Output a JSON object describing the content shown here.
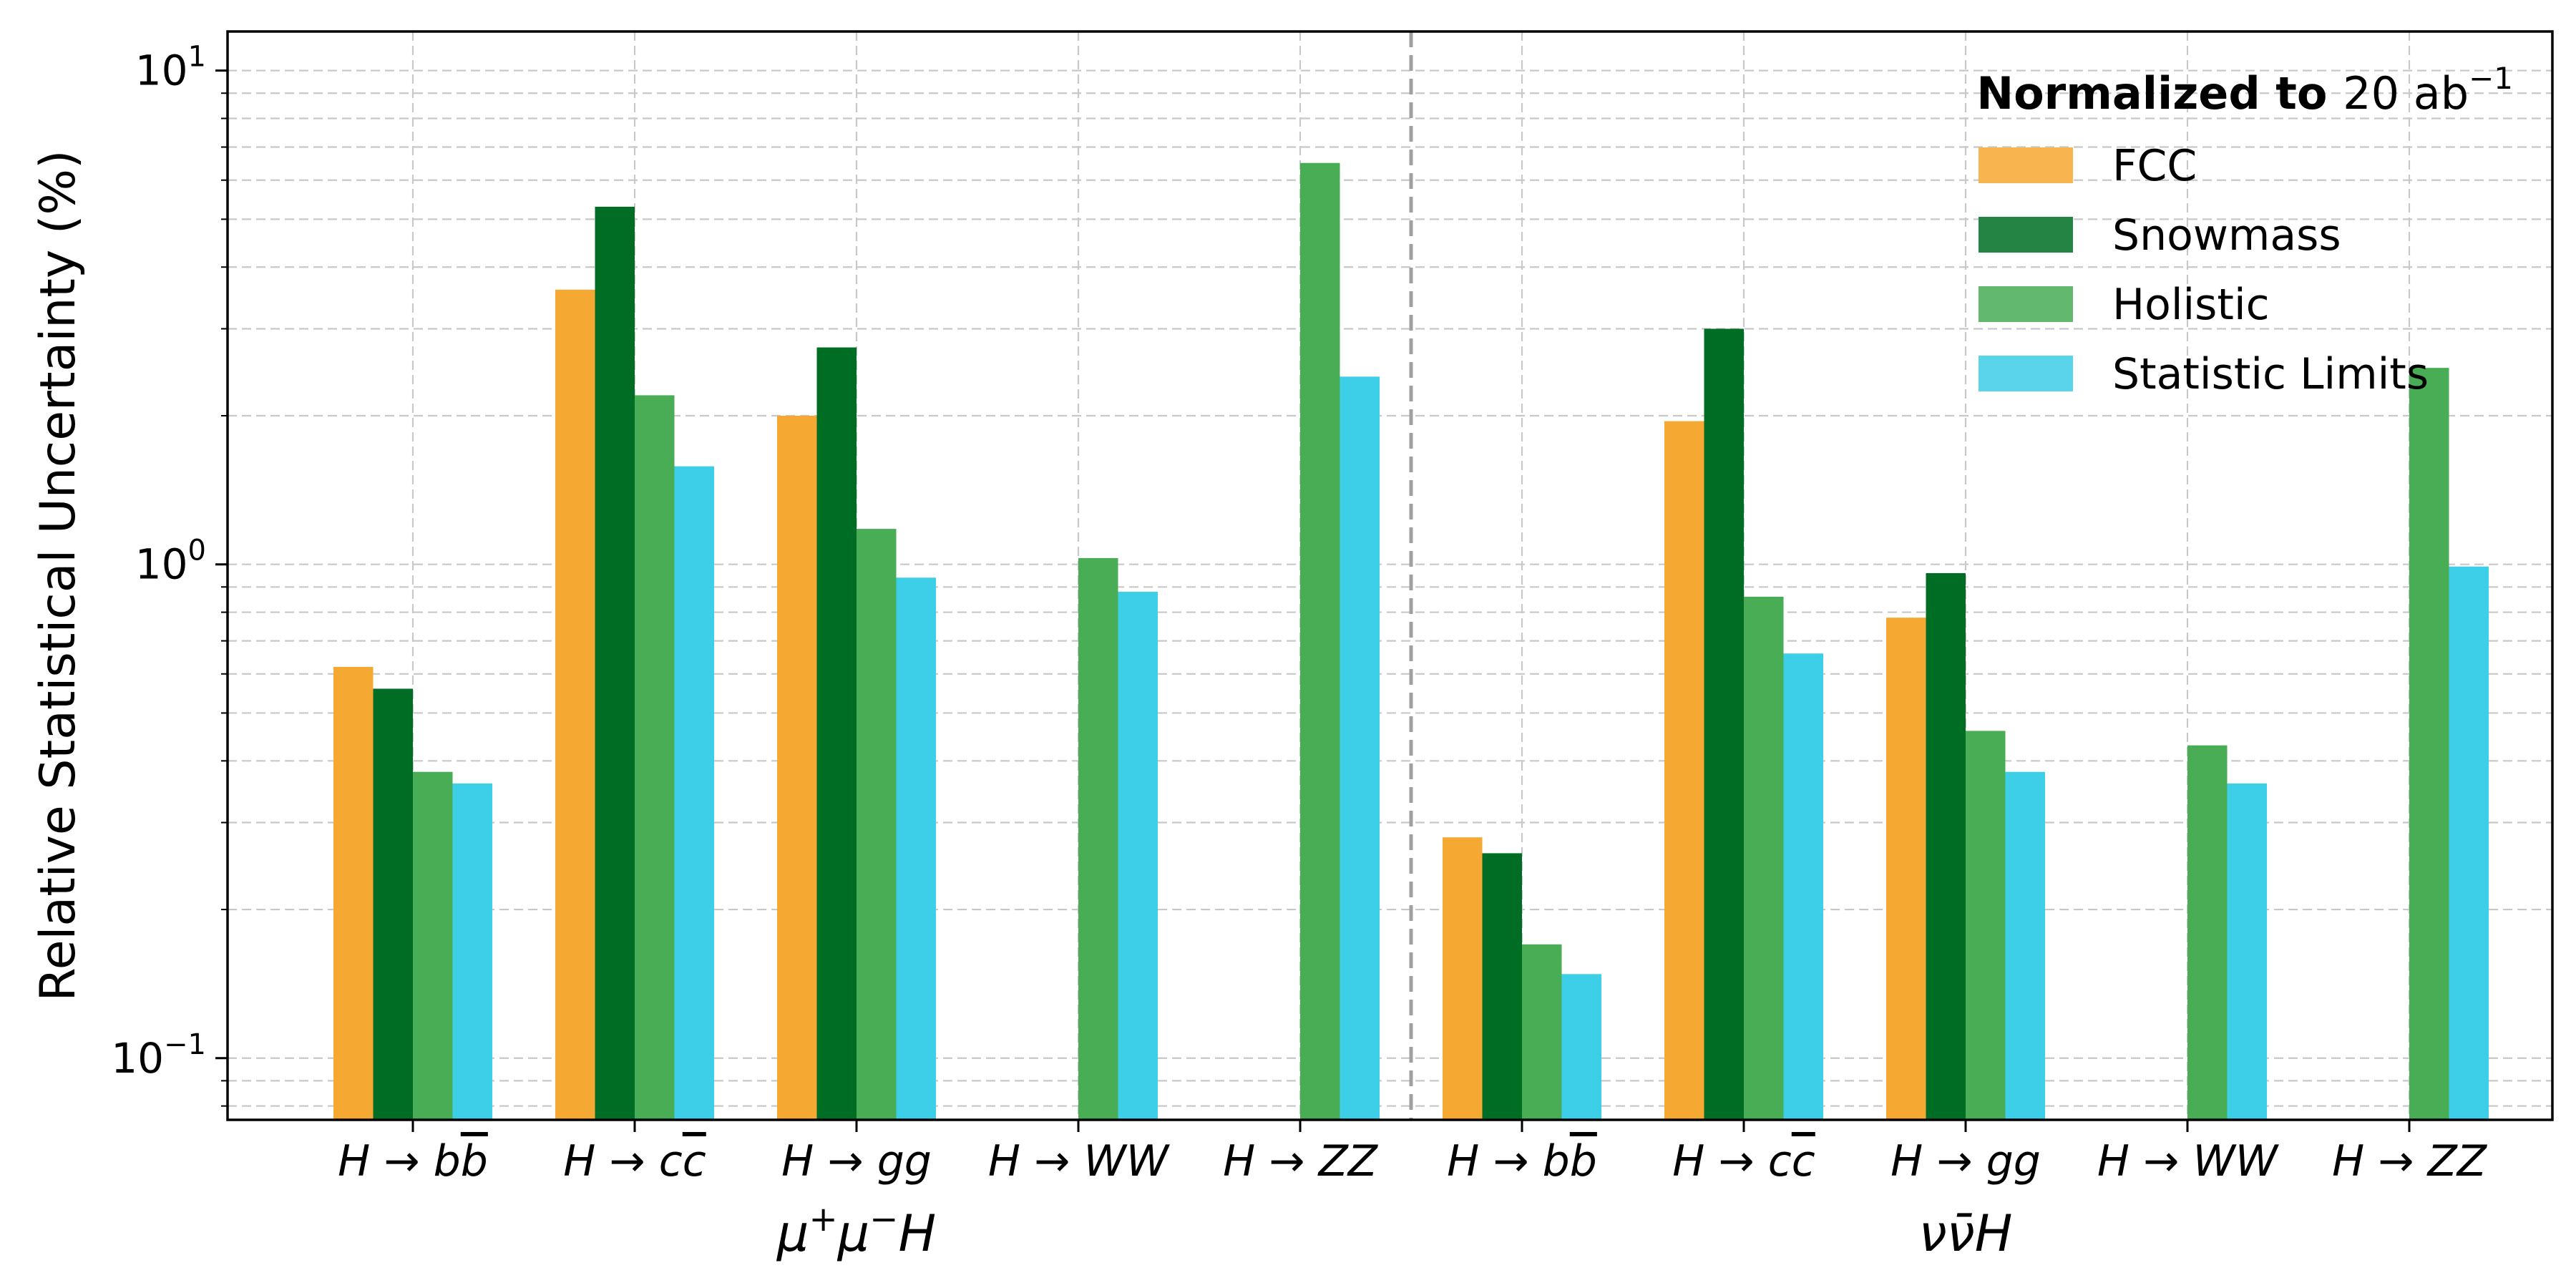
{
  "chart_data": {
    "type": "bar",
    "ylabel": "Relative Statistical Uncertainty (%)",
    "yscale": "log",
    "ylim": [
      0.075,
      12
    ],
    "ytick_base": "10",
    "ytick_exponents": [
      "−1",
      "0",
      "1"
    ],
    "grid": true,
    "legend_placement": "top-right",
    "legend_title_bold": "Normalized to",
    "legend_title_rest": "20 ab",
    "legend_title_sup": "−1",
    "groups": [
      {
        "label_base": "μ",
        "label_sup1": "+",
        "label_mid": "μ",
        "label_sup2": "−",
        "label_end": "H",
        "label_plain": "μ+μ−H",
        "categories": [
          {
            "parent": "H",
            "arrow": "→",
            "product": "b",
            "overline": true
          },
          {
            "parent": "H",
            "arrow": "→",
            "product": "c",
            "overline": true
          },
          {
            "parent": "H",
            "arrow": "→",
            "product": "gg",
            "overline": false
          },
          {
            "parent": "H",
            "arrow": "→",
            "product": "WW",
            "overline": false
          },
          {
            "parent": "H",
            "arrow": "→",
            "product": "ZZ",
            "overline": false
          }
        ]
      },
      {
        "label_plain": "νν̄H",
        "categories": [
          {
            "parent": "H",
            "arrow": "→",
            "product": "b",
            "overline": true
          },
          {
            "parent": "H",
            "arrow": "→",
            "product": "c",
            "overline": true
          },
          {
            "parent": "H",
            "arrow": "→",
            "product": "gg",
            "overline": false
          },
          {
            "parent": "H",
            "arrow": "→",
            "product": "WW",
            "overline": false
          },
          {
            "parent": "H",
            "arrow": "→",
            "product": "ZZ",
            "overline": false
          }
        ]
      }
    ],
    "category_labels": [
      "H→bb̄",
      "H→cc̄",
      "H→gg",
      "H→WW",
      "H→ZZ",
      "H→bb̄",
      "H→cc̄",
      "H→gg",
      "H→WW",
      "H→ZZ"
    ],
    "series": [
      {
        "name": "FCC",
        "color": "#F5A832",
        "legend_color": "#F7B44F",
        "values": [
          0.62,
          3.6,
          2.0,
          null,
          null,
          0.28,
          1.95,
          0.78,
          null,
          null
        ]
      },
      {
        "name": "Snowmass",
        "color": "#006D25",
        "legend_color": "#238443",
        "values": [
          0.56,
          5.3,
          2.75,
          null,
          null,
          0.26,
          3.0,
          0.96,
          null,
          null
        ]
      },
      {
        "name": "Holistic",
        "color": "#48AD54",
        "legend_color": "#62B86C",
        "values": [
          0.38,
          2.2,
          1.18,
          1.03,
          6.5,
          0.17,
          0.86,
          0.46,
          0.43,
          2.5
        ]
      },
      {
        "name": "Statistic Limits",
        "color": "#3ECFE8",
        "legend_color": "#5AD4EB",
        "values": [
          0.36,
          1.58,
          0.94,
          0.88,
          2.4,
          0.148,
          0.66,
          0.38,
          0.36,
          0.99
        ]
      }
    ]
  }
}
